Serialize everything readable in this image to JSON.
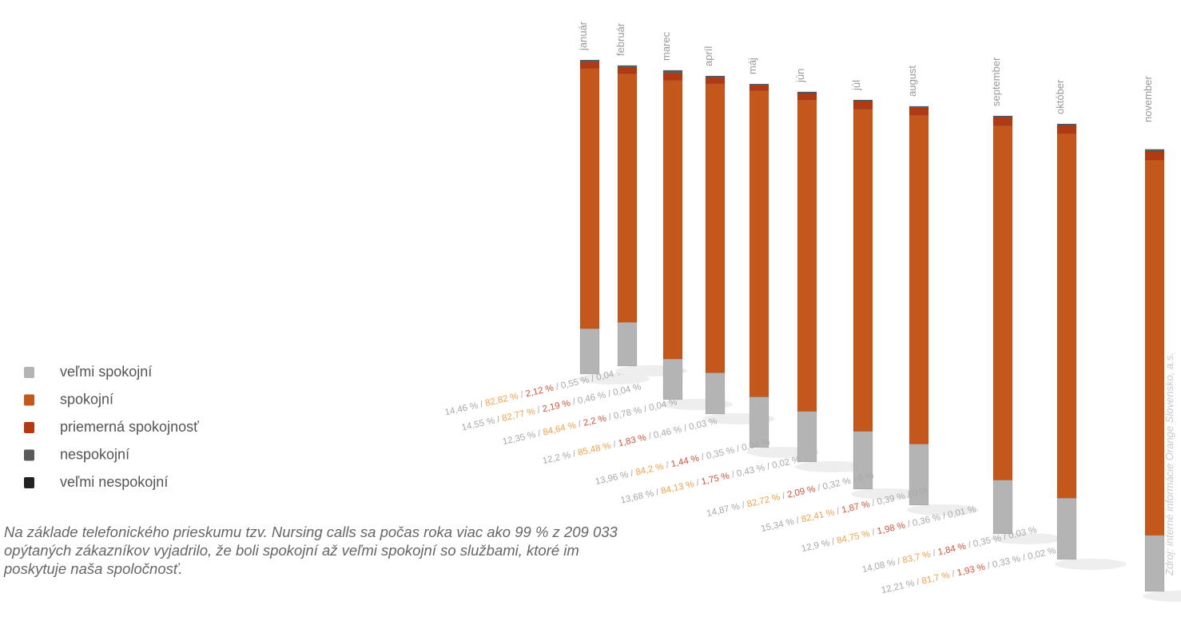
{
  "chart_data": {
    "type": "stacked-column-3d",
    "categories": [
      "január",
      "február",
      "marec",
      "apríl",
      "máj",
      "jún",
      "júl",
      "august",
      "september",
      "október",
      "november"
    ],
    "series": [
      {
        "name": "veľmi spokojní",
        "color": "#b4b4b4",
        "label_color": "#a8a8a8",
        "values": [
          14.46,
          14.55,
          12.35,
          12.2,
          13.96,
          13.68,
          14.87,
          15.34,
          12.9,
          14.08,
          12.21
        ],
        "value_labels": [
          "14,46 %",
          "14,55 %",
          "12,35 %",
          "12,2 %",
          "13,96 %",
          "13,68 %",
          "14,87 %",
          "15,34 %",
          "12,9 %",
          "14,08 %",
          "12,21 %"
        ]
      },
      {
        "name": "spokojní",
        "color": "#c4581c",
        "label_color": "#f0a24e",
        "values": [
          82.82,
          82.77,
          84.64,
          85.48,
          84.2,
          84.13,
          82.72,
          82.41,
          84.75,
          83.7,
          81.7
        ],
        "value_labels": [
          "82,82 %",
          "82,77 %",
          "84,64 %",
          "85,48 %",
          "84,2 %",
          "84,13 %",
          "82,72 %",
          "82,41 %",
          "84,75 %",
          "83,7 %",
          "81,7 %"
        ]
      },
      {
        "name": "priemerná spokojnosť",
        "color": "#b03a14",
        "label_color": "#d2563a",
        "values": [
          2.12,
          2.19,
          2.2,
          1.83,
          1.44,
          1.75,
          2.09,
          1.87,
          1.98,
          1.84,
          1.93
        ],
        "value_labels": [
          "2,12 %",
          "2,19 %",
          "2,2 %",
          "1,83 %",
          "1,44 %",
          "1,75 %",
          "2,09 %",
          "1,87 %",
          "1,98 %",
          "1,84 %",
          "1,93 %"
        ]
      },
      {
        "name": "nespokojní",
        "color": "#5a5a5a",
        "label_color": "#a8a8a8",
        "values": [
          0.55,
          0.46,
          0.78,
          0.46,
          0.35,
          0.43,
          0.32,
          0.39,
          0.36,
          0.35,
          0.33
        ],
        "value_labels": [
          "0,55 %",
          "0,46 %",
          "0,78 %",
          "0,46 %",
          "0,35 %",
          "0,43 %",
          "0,32 %",
          "0,39 %",
          "0,36 %",
          "0,35 %",
          "0,33 %"
        ]
      },
      {
        "name": "veľmi nespokojní",
        "color": "#222222",
        "label_color": "#a8a8a8",
        "values": [
          0.04,
          0.04,
          0.04,
          0.03,
          0.04,
          0.02,
          0,
          0,
          0.01,
          0.03,
          0.02
        ],
        "value_labels": [
          "0,04 %",
          "0,04 %",
          "0,04 %",
          "0,03 %",
          "0,04 %",
          "0,02 %",
          "0 %",
          "0 %",
          "0,01 %",
          "0,03 %",
          "0,02 %"
        ]
      }
    ],
    "value_label_separator": " / ",
    "description": "Na základe telefonického prieskumu tzv. Nursing calls sa počas roka viac ako 99 % z 209 033 opýtaných zákazníkov vyjadrilo, že boli spokojní až veľmi spokojní so službami, ktoré im poskytuje naša spoločnosť.",
    "source": "Zdroj: interné informácie Orange Slovensko, a.s."
  }
}
